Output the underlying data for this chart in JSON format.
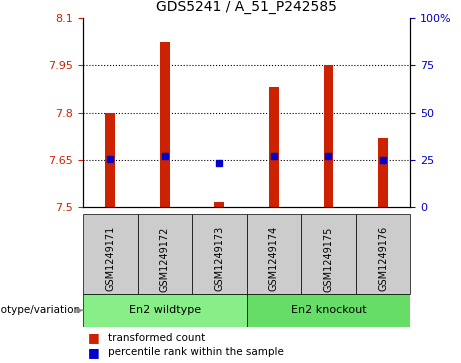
{
  "title": "GDS5241 / A_51_P242585",
  "samples": [
    "GSM1249171",
    "GSM1249172",
    "GSM1249173",
    "GSM1249174",
    "GSM1249175",
    "GSM1249176"
  ],
  "red_values": [
    7.8,
    8.025,
    7.515,
    7.88,
    7.95,
    7.72
  ],
  "blue_values": [
    7.652,
    7.663,
    7.638,
    7.663,
    7.661,
    7.65
  ],
  "bar_bottom": 7.5,
  "ylim_left": [
    7.5,
    8.1
  ],
  "ylim_right": [
    0,
    100
  ],
  "yticks_left": [
    7.5,
    7.65,
    7.8,
    7.95,
    8.1
  ],
  "yticks_right": [
    0,
    25,
    50,
    75,
    100
  ],
  "ytick_labels_left": [
    "7.5",
    "7.65",
    "7.8",
    "7.95",
    "8.1"
  ],
  "ytick_labels_right": [
    "0",
    "25",
    "50",
    "75",
    "100%"
  ],
  "hlines": [
    7.65,
    7.8,
    7.95
  ],
  "wildtype_label": "En2 wildtype",
  "knockout_label": "En2 knockout",
  "genotype_label": "genotype/variation",
  "legend_red": "transformed count",
  "legend_blue": "percentile rank within the sample",
  "red_color": "#cc2200",
  "blue_color": "#0000cc",
  "bar_width": 0.18,
  "bg_plot": "#ffffff",
  "bg_xtick": "#cccccc",
  "bg_wildtype": "#88ee88",
  "bg_knockout": "#66dd66",
  "arrow_color": "#888888"
}
